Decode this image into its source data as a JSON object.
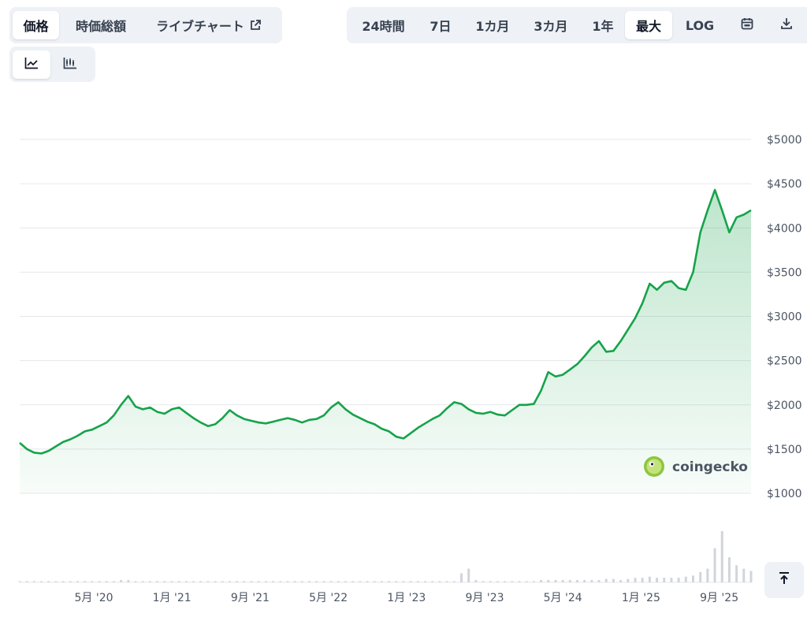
{
  "tabs": [
    {
      "label": "価格",
      "active": true
    },
    {
      "label": "時価総額",
      "active": false
    },
    {
      "label": "ライブチャート",
      "active": false,
      "icon": "external-link-icon"
    }
  ],
  "ranges": [
    {
      "label": "24時間",
      "active": false
    },
    {
      "label": "7日",
      "active": false
    },
    {
      "label": "1カ月",
      "active": false
    },
    {
      "label": "3カ月",
      "active": false
    },
    {
      "label": "1年",
      "active": false
    },
    {
      "label": "最大",
      "active": true
    },
    {
      "label": "LOG",
      "active": false
    }
  ],
  "toolbar_icons": [
    "calendar-icon",
    "download-icon"
  ],
  "chart_type_icons": [
    {
      "icon": "line-chart-icon",
      "active": true
    },
    {
      "icon": "candlestick-icon",
      "active": false
    }
  ],
  "watermark": "coingecko",
  "colors": {
    "line": "#16a34a",
    "fill": "#dcfce7",
    "grid": "#e5e7eb",
    "active_bg": "#ffffff",
    "bar_bg": "#eef1f5"
  },
  "chart_data": {
    "type": "area",
    "title": "",
    "xlabel": "",
    "ylabel": "",
    "y_axis": {
      "min": 1000,
      "max": 5000,
      "ticks": [
        5000,
        4500,
        4000,
        3500,
        3000,
        2500,
        2000,
        1500,
        1000
      ],
      "prefix": "$",
      "position": "right"
    },
    "x_axis": {
      "ticks": [
        "5月 '20",
        "1月 '21",
        "9月 '21",
        "5月 '22",
        "1月 '23",
        "9月 '23",
        "5月 '24",
        "1月 '25",
        "9月 '25"
      ]
    },
    "grid": true,
    "series": [
      {
        "values": [
          1570,
          1500,
          1460,
          1450,
          1480,
          1530,
          1580,
          1610,
          1650,
          1700,
          1720,
          1760,
          1800,
          1880,
          2000,
          2100,
          1980,
          1950,
          1970,
          1920,
          1900,
          1950,
          1970,
          1910,
          1850,
          1800,
          1760,
          1780,
          1850,
          1940,
          1880,
          1840,
          1820,
          1800,
          1790,
          1810,
          1830,
          1850,
          1830,
          1800,
          1830,
          1840,
          1880,
          1970,
          2030,
          1950,
          1890,
          1850,
          1810,
          1780,
          1730,
          1700,
          1640,
          1620,
          1680,
          1740,
          1790,
          1840,
          1880,
          1960,
          2030,
          2010,
          1950,
          1910,
          1900,
          1920,
          1890,
          1880,
          1940,
          2000,
          2000,
          2010,
          2160,
          2370,
          2320,
          2340,
          2400,
          2460,
          2550,
          2650,
          2720,
          2600,
          2610,
          2720,
          2850,
          2980,
          3150,
          3370,
          3300,
          3380,
          3400,
          3320,
          3300,
          3500,
          3950,
          4200,
          4430,
          4200,
          3950,
          4120,
          4150,
          4200
        ]
      }
    ],
    "volume_values": [
      1,
      1,
      1,
      1,
      1,
      1,
      1,
      1,
      1,
      1,
      1,
      1,
      1,
      1,
      2,
      2,
      1,
      1,
      1,
      1,
      1,
      1,
      1,
      1,
      1,
      1,
      1,
      1,
      1,
      1,
      1,
      1,
      1,
      1,
      1,
      1,
      1,
      1,
      1,
      1,
      1,
      1,
      1,
      1,
      1,
      1,
      1,
      1,
      1,
      1,
      1,
      1,
      1,
      1,
      1,
      1,
      1,
      1,
      1,
      1,
      1,
      8,
      12,
      2,
      1,
      1,
      1,
      1,
      1,
      1,
      1,
      1,
      2,
      2,
      2,
      2,
      2,
      2,
      2,
      2,
      2,
      3,
      3,
      2,
      3,
      4,
      4,
      5,
      4,
      4,
      4,
      4,
      5,
      6,
      9,
      12,
      30,
      45,
      22,
      15,
      12,
      10
    ]
  }
}
